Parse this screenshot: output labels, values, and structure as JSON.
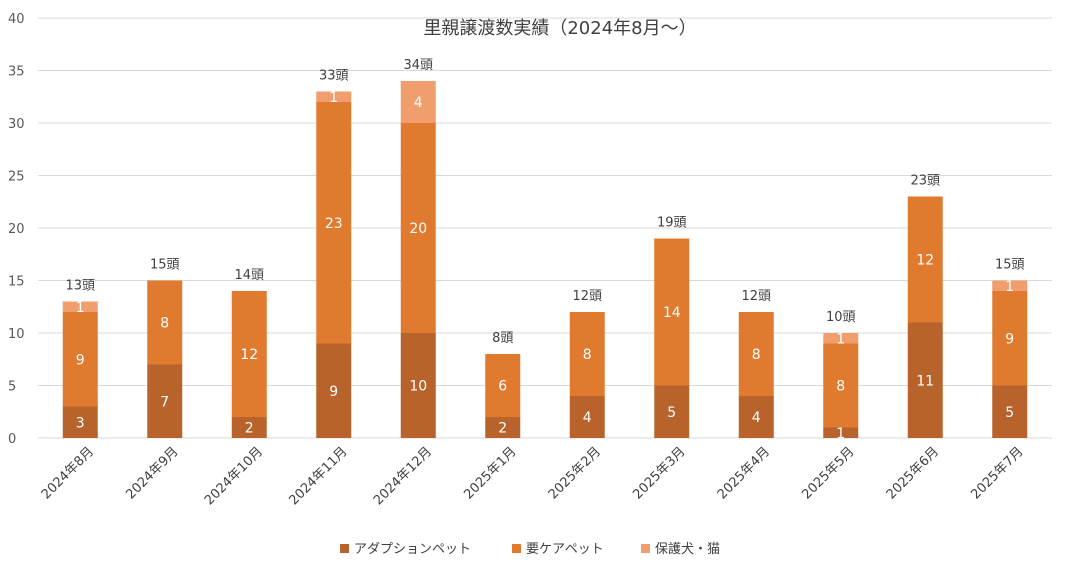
{
  "chart_data": {
    "type": "bar",
    "stacked": true,
    "title": "里親譲渡数実績（2024年8月～）",
    "xlabel": "",
    "ylabel": "",
    "ylim": [
      0,
      40
    ],
    "yticks": [
      0,
      5,
      10,
      15,
      20,
      25,
      30,
      35,
      40
    ],
    "grid": true,
    "legend_position": "bottom",
    "categories": [
      "2024年8月",
      "2024年9月",
      "2024年10月",
      "2024年11月",
      "2024年12月",
      "2025年1月",
      "2025年2月",
      "2025年3月",
      "2025年4月",
      "2025年5月",
      "2025年6月",
      "2025年7月"
    ],
    "series": [
      {
        "name": "アダプションペット",
        "color": "#b8632b",
        "values": [
          3,
          7,
          2,
          9,
          10,
          2,
          4,
          5,
          4,
          1,
          11,
          5
        ]
      },
      {
        "name": "要ケアペット",
        "color": "#e07a2e",
        "values": [
          9,
          8,
          12,
          23,
          20,
          6,
          8,
          14,
          8,
          8,
          12,
          9
        ]
      },
      {
        "name": "保護犬・猫",
        "color": "#f19e6f",
        "values": [
          1,
          0,
          0,
          1,
          4,
          0,
          0,
          0,
          0,
          1,
          0,
          1
        ]
      }
    ],
    "totals": [
      "13頭",
      "15頭",
      "14頭",
      "33頭",
      "34頭",
      "8頭",
      "12頭",
      "19頭",
      "12頭",
      "10頭",
      "23頭",
      "15頭"
    ]
  }
}
